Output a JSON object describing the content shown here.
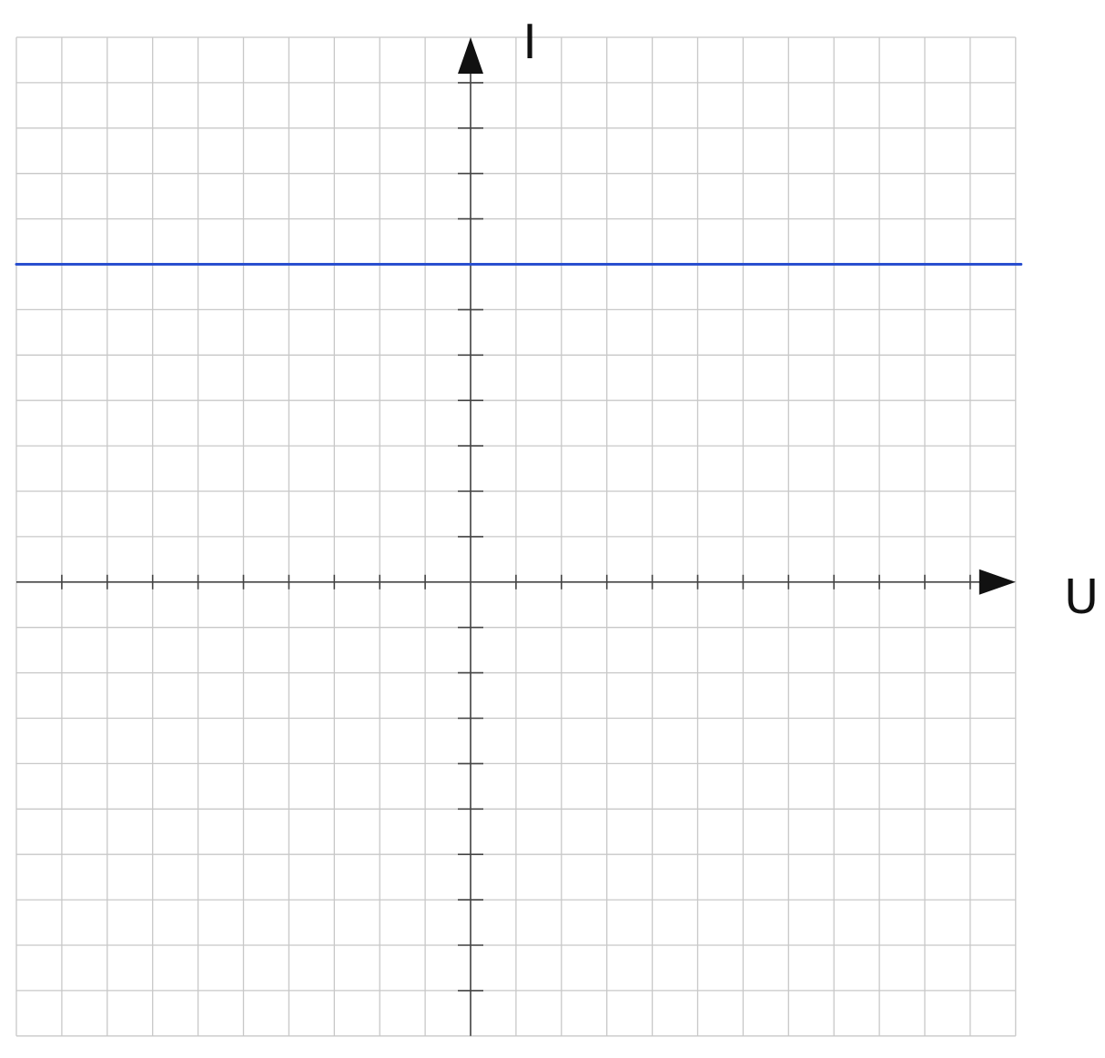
{
  "chart_data": {
    "type": "line",
    "title": "",
    "xlabel": "U",
    "ylabel": "I",
    "xlim": [
      -10,
      12
    ],
    "ylim": [
      -10,
      12
    ],
    "tick_labels": "none",
    "grid": true,
    "legend": "none",
    "series": [
      {
        "kind": "horizontal-line",
        "x": [
          -10,
          12
        ],
        "values": [
          7,
          7
        ],
        "color": "#2a4fcf"
      }
    ]
  },
  "style": {
    "grid_color": "#c8c8c8",
    "axis_color": "#444444",
    "arrow_color": "#111111"
  }
}
